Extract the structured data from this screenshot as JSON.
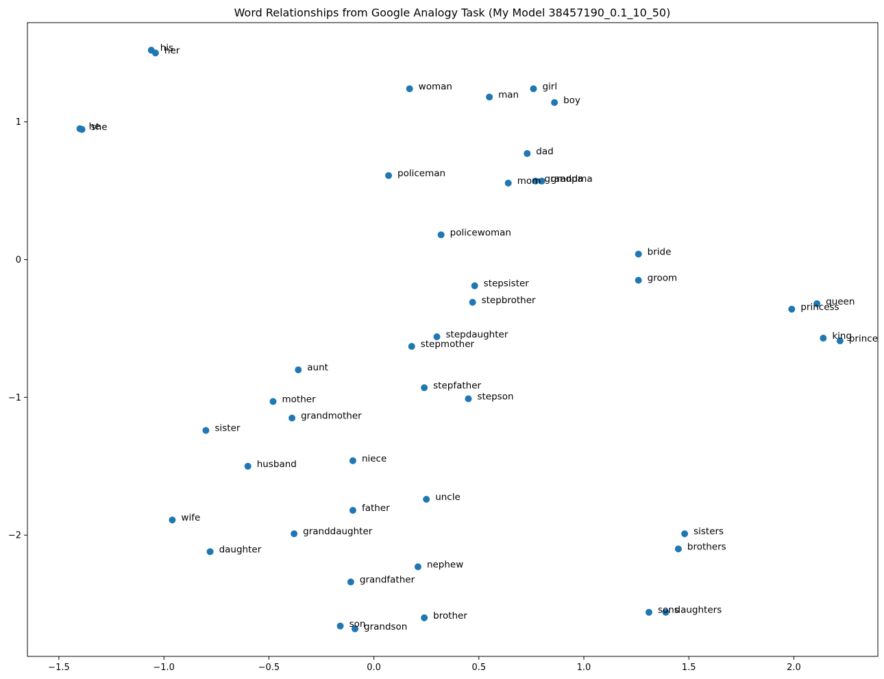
{
  "chart_data": {
    "type": "scatter",
    "title": "Word Relationships from Google Analogy Task (My Model 38457190_0.1_10_50)",
    "xlabel": "",
    "ylabel": "",
    "xlim": [
      -1.65,
      2.4
    ],
    "ylim": [
      -2.88,
      1.72
    ],
    "xticks": [
      -1.5,
      -1.0,
      -0.5,
      0.0,
      0.5,
      1.0,
      1.5,
      2.0
    ],
    "xtick_labels": [
      "−1.5",
      "−1.0",
      "−0.5",
      "0.0",
      "0.5",
      "1.0",
      "1.5",
      "2.0"
    ],
    "yticks": [
      1,
      0,
      -1,
      -2
    ],
    "ytick_labels": [
      "1",
      "0",
      "−1",
      "−2"
    ],
    "grid": false,
    "legend": "none",
    "point_color": "#1f77b4",
    "points": [
      {
        "label": "his",
        "x": -1.06,
        "y": 1.52
      },
      {
        "label": "her",
        "x": -1.04,
        "y": 1.5
      },
      {
        "label": "he",
        "x": -1.4,
        "y": 0.95
      },
      {
        "label": "she",
        "x": -1.39,
        "y": 0.945
      },
      {
        "label": "woman",
        "x": 0.17,
        "y": 1.24
      },
      {
        "label": "man",
        "x": 0.55,
        "y": 1.18
      },
      {
        "label": "girl",
        "x": 0.76,
        "y": 1.24
      },
      {
        "label": "boy",
        "x": 0.86,
        "y": 1.14
      },
      {
        "label": "dad",
        "x": 0.73,
        "y": 0.77
      },
      {
        "label": "policeman",
        "x": 0.07,
        "y": 0.61
      },
      {
        "label": "mom",
        "x": 0.64,
        "y": 0.555
      },
      {
        "label": "grandpa",
        "x": 0.77,
        "y": 0.57
      },
      {
        "label": "grandma",
        "x": 0.8,
        "y": 0.57
      },
      {
        "label": "policewoman",
        "x": 0.32,
        "y": 0.18
      },
      {
        "label": "bride",
        "x": 1.26,
        "y": 0.04
      },
      {
        "label": "groom",
        "x": 1.26,
        "y": -0.15
      },
      {
        "label": "stepsister",
        "x": 0.48,
        "y": -0.19
      },
      {
        "label": "stepbrother",
        "x": 0.47,
        "y": -0.31
      },
      {
        "label": "queen",
        "x": 2.11,
        "y": -0.32
      },
      {
        "label": "princess",
        "x": 1.99,
        "y": -0.36
      },
      {
        "label": "king",
        "x": 2.14,
        "y": -0.57
      },
      {
        "label": "prince",
        "x": 2.22,
        "y": -0.59
      },
      {
        "label": "stepdaughter",
        "x": 0.3,
        "y": -0.56
      },
      {
        "label": "stepmother",
        "x": 0.18,
        "y": -0.63
      },
      {
        "label": "aunt",
        "x": -0.36,
        "y": -0.8
      },
      {
        "label": "stepfather",
        "x": 0.24,
        "y": -0.93
      },
      {
        "label": "stepson",
        "x": 0.45,
        "y": -1.01
      },
      {
        "label": "mother",
        "x": -0.48,
        "y": -1.03
      },
      {
        "label": "grandmother",
        "x": -0.39,
        "y": -1.15
      },
      {
        "label": "sister",
        "x": -0.8,
        "y": -1.24
      },
      {
        "label": "niece",
        "x": -0.1,
        "y": -1.46
      },
      {
        "label": "husband",
        "x": -0.6,
        "y": -1.5
      },
      {
        "label": "uncle",
        "x": 0.25,
        "y": -1.74
      },
      {
        "label": "father",
        "x": -0.1,
        "y": -1.82
      },
      {
        "label": "wife",
        "x": -0.96,
        "y": -1.89
      },
      {
        "label": "granddaughter",
        "x": -0.38,
        "y": -1.99
      },
      {
        "label": "sisters",
        "x": 1.48,
        "y": -1.99
      },
      {
        "label": "daughter",
        "x": -0.78,
        "y": -2.12
      },
      {
        "label": "brothers",
        "x": 1.45,
        "y": -2.1
      },
      {
        "label": "nephew",
        "x": 0.21,
        "y": -2.23
      },
      {
        "label": "grandfather",
        "x": -0.11,
        "y": -2.34
      },
      {
        "label": "sons",
        "x": 1.31,
        "y": -2.56
      },
      {
        "label": "daughters",
        "x": 1.39,
        "y": -2.56
      },
      {
        "label": "brother",
        "x": 0.24,
        "y": -2.6
      },
      {
        "label": "son",
        "x": -0.16,
        "y": -2.66
      },
      {
        "label": "grandson",
        "x": -0.09,
        "y": -2.68
      }
    ]
  }
}
